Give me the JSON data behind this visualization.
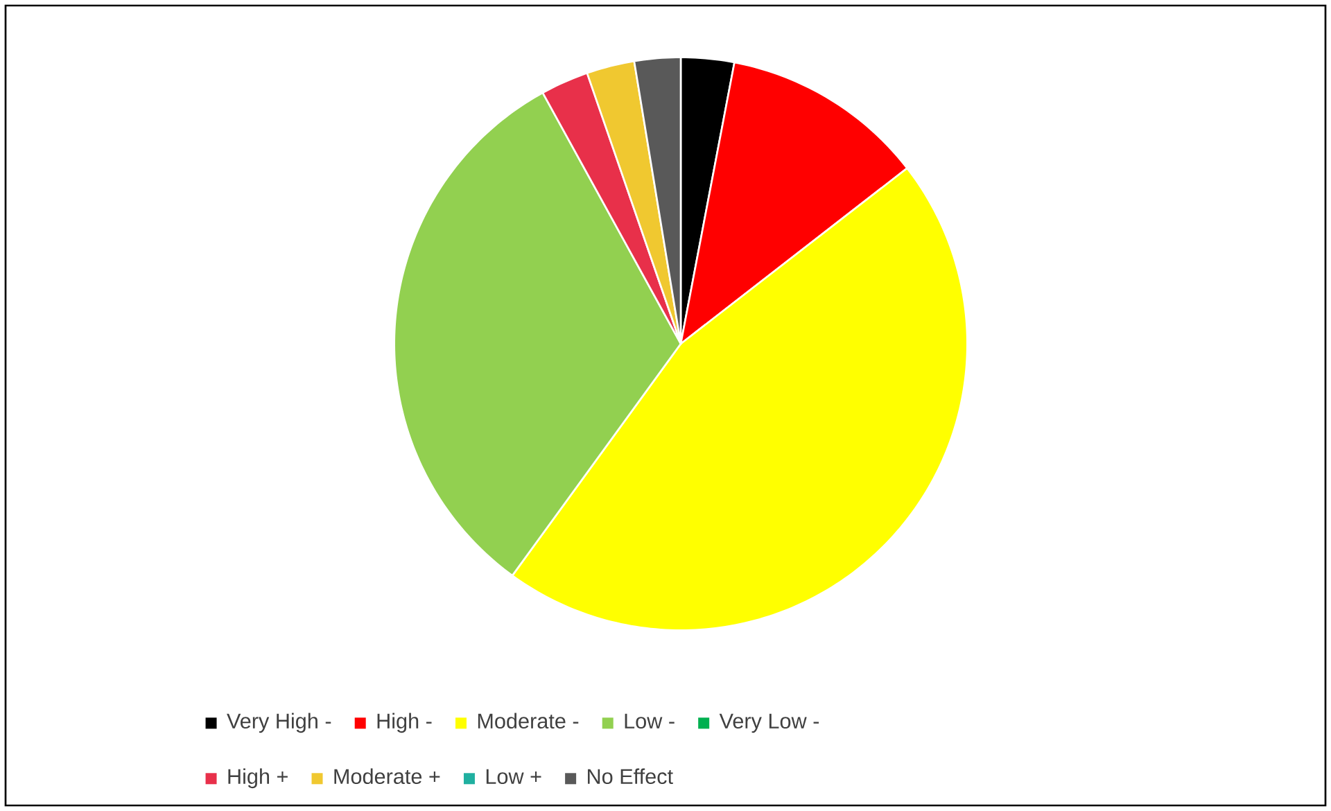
{
  "chart_data": {
    "type": "pie",
    "categories": [
      "Very High -",
      "High -",
      "Moderate -",
      "Low -",
      "Very Low -",
      "High +",
      "Moderate +",
      "Low +",
      "No Effect"
    ],
    "values": [
      3,
      11.5,
      45.5,
      32,
      0,
      2.7,
      2.7,
      0,
      2.6
    ],
    "colors": [
      "#000000",
      "#ff0000",
      "#ffff00",
      "#92d050",
      "#00b050",
      "#e8304a",
      "#f0c830",
      "#20b0a0",
      "#595959"
    ],
    "legend": "bottom"
  }
}
